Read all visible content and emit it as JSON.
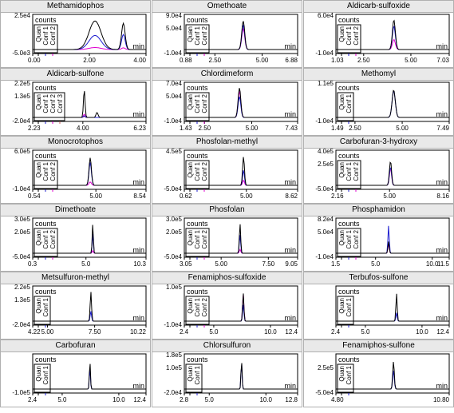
{
  "colors": {
    "quan": "#000000",
    "conf1": "#1f1fd0",
    "conf2": "#e000d0",
    "conf3": "#cc6666",
    "frame": "#000000",
    "title_bg": "#e9e9e9"
  },
  "common": {
    "counts_label": "counts",
    "min_label": "min"
  },
  "chart_data": [
    {
      "type": "line",
      "title": "Methamidophos",
      "ymax_label": "2.5e4",
      "ymid_label": "",
      "ymin_label": "-5.0e3",
      "x_ticks": [
        "0.00",
        "2.00",
        "4.00"
      ],
      "x_tick_values": [
        0,
        2,
        4
      ],
      "xlim": [
        0,
        4
      ],
      "legend": [
        "Quan",
        "Conf 1",
        "Conf 2"
      ],
      "peaks": [
        {
          "x": 2.2,
          "width": 0.3,
          "heights": [
            0.85,
            0.42,
            0.06
          ]
        },
        {
          "x": 3.2,
          "width": 0.09,
          "heights": [
            0.78,
            0.45,
            0.05
          ]
        }
      ]
    },
    {
      "type": "line",
      "title": "Omethoate",
      "ymax_label": "9.0e4",
      "ymid_label": "5.0e4",
      "ymin_label": "-1.0e4",
      "x_ticks": [
        "0.88",
        "2.50",
        "5.00",
        "6.88"
      ],
      "x_tick_values": [
        0.88,
        2.5,
        5.0,
        6.88
      ],
      "xlim": [
        0.88,
        6.88
      ],
      "legend": [
        "Quan",
        "Conf 1",
        "Conf 2"
      ],
      "peaks": [
        {
          "x": 4.0,
          "width": 0.11,
          "heights": [
            0.85,
            0.72,
            0.62
          ]
        }
      ]
    },
    {
      "type": "line",
      "title": "Aldicarb-sulfoxide",
      "ymax_label": "6.0e4",
      "ymid_label": "",
      "ymin_label": "-1.0e4",
      "x_ticks": [
        "1.03",
        "2.50",
        "5.00",
        "7.03"
      ],
      "x_tick_values": [
        1.03,
        2.5,
        5.0,
        7.03
      ],
      "xlim": [
        1.03,
        7.03
      ],
      "legend": [
        "Quan",
        "Conf 1",
        "Conf 2"
      ],
      "peaks": [
        {
          "x": 4.1,
          "width": 0.11,
          "heights": [
            0.88,
            0.7,
            0.3
          ]
        }
      ]
    },
    {
      "type": "line",
      "title": "Aldicarb-sulfone",
      "ymax_label": "2.2e5",
      "ymid_label": "1.3e5",
      "ymin_label": "-2.0e4",
      "x_ticks": [
        "2.23",
        "4.00",
        "6.23"
      ],
      "x_tick_values": [
        2.23,
        4.0,
        6.23
      ],
      "xlim": [
        2.23,
        6.23
      ],
      "legend": [
        "Quan",
        "Conf 1",
        "Conf 2",
        "Conf 3"
      ],
      "peaks": [
        {
          "x": 4.05,
          "width": 0.04,
          "heights": [
            0.82,
            0.05,
            0.1,
            0.03
          ]
        },
        {
          "x": 4.5,
          "width": 0.05,
          "heights": [
            0.15,
            0.0,
            0.0,
            0.0
          ]
        }
      ]
    },
    {
      "type": "line",
      "title": "Chlordimeform",
      "ymax_label": "7.0e4",
      "ymid_label": "5.0e4",
      "ymin_label": "-1.0e4",
      "x_ticks": [
        "1.43",
        "2.50",
        "5.00",
        "7.43"
      ],
      "x_tick_values": [
        1.43,
        2.5,
        5.0,
        7.43
      ],
      "xlim": [
        1.43,
        7.43
      ],
      "legend": [
        "Quan",
        "Conf 1",
        "Conf 2"
      ],
      "peaks": [
        {
          "x": 4.35,
          "width": 0.1,
          "heights": [
            0.88,
            0.62,
            0.78
          ]
        }
      ]
    },
    {
      "type": "line",
      "title": "Methomyl",
      "ymax_label": "1.1e5",
      "ymid_label": "",
      "ymin_label": "-1.0e4",
      "x_ticks": [
        "1.49",
        "2.50",
        "5.00",
        "7.49"
      ],
      "x_tick_values": [
        1.49,
        2.5,
        5.0,
        7.49
      ],
      "xlim": [
        1.49,
        7.49
      ],
      "legend": [
        "Quan",
        "Conf 1"
      ],
      "peaks": [
        {
          "x": 4.55,
          "width": 0.12,
          "heights": [
            0.82,
            0.8
          ]
        }
      ]
    },
    {
      "type": "line",
      "title": "Monocrotophos",
      "ymax_label": "6.0e5",
      "ymid_label": "",
      "ymin_label": "-1.0e4",
      "x_ticks": [
        "0.54",
        "5.00",
        "8.54"
      ],
      "x_tick_values": [
        0.54,
        5.0,
        8.54
      ],
      "xlim": [
        0.54,
        8.54
      ],
      "legend": [
        "Quan",
        "Conf 1",
        "Conf 2"
      ],
      "peaks": [
        {
          "x": 4.6,
          "width": 0.12,
          "heights": [
            0.82,
            0.68,
            0.1
          ]
        }
      ]
    },
    {
      "type": "line",
      "title": "Phosfolan-methyl",
      "ymax_label": "4.5e5",
      "ymid_label": "",
      "ymin_label": "-5.0e4",
      "x_ticks": [
        "0.62",
        "5.00",
        "8.62"
      ],
      "x_tick_values": [
        0.62,
        5.0,
        8.62
      ],
      "xlim": [
        0.62,
        8.62
      ],
      "legend": [
        "Quan",
        "Conf 1",
        "Conf 2"
      ],
      "peaks": [
        {
          "x": 4.8,
          "width": 0.09,
          "heights": [
            0.85,
            0.45,
            0.15
          ]
        }
      ]
    },
    {
      "type": "line",
      "title": "Carbofuran-3-hydroxy",
      "ymax_label": "4.0e5",
      "ymid_label": "2.5e5",
      "ymin_label": "-5.0e4",
      "x_ticks": [
        "2.16",
        "5.00",
        "8.16"
      ],
      "x_tick_values": [
        2.16,
        5.0,
        8.16
      ],
      "xlim": [
        2.16,
        8.16
      ],
      "legend": [
        "Quan",
        "Conf 1",
        "Conf 2"
      ],
      "peaks": [
        {
          "x": 5.05,
          "width": 0.08,
          "heights": [
            0.72,
            0.55,
            0.5
          ]
        }
      ]
    },
    {
      "type": "line",
      "title": "Dimethoate",
      "ymax_label": "3.0e5",
      "ymid_label": "2.0e5",
      "ymin_label": "-5.0e4",
      "x_ticks": [
        "0.3",
        "5.0",
        "10.3"
      ],
      "x_tick_values": [
        0.3,
        5.0,
        10.3
      ],
      "xlim": [
        0.3,
        10.3
      ],
      "legend": [
        "Quan",
        "Conf 1",
        "Conf 2"
      ],
      "peaks": [
        {
          "x": 5.6,
          "width": 0.07,
          "heights": [
            0.88,
            0.6,
            0.08
          ]
        }
      ]
    },
    {
      "type": "line",
      "title": "Phosfolan",
      "ymax_label": "3.0e5",
      "ymid_label": "2.0e5",
      "ymin_label": "-5.0e4",
      "x_ticks": [
        "3.05",
        "5.00",
        "7.50",
        "9.05"
      ],
      "x_tick_values": [
        3.05,
        5.0,
        7.5,
        9.05
      ],
      "xlim": [
        3.05,
        9.05
      ],
      "legend": [
        "Quan",
        "Conf 1",
        "Conf 2"
      ],
      "peaks": [
        {
          "x": 6.0,
          "width": 0.05,
          "heights": [
            0.88,
            0.55,
            0.12
          ]
        }
      ]
    },
    {
      "type": "line",
      "title": "Phosphamidon",
      "ymax_label": "8.2e4",
      "ymid_label": "5.0e4",
      "ymin_label": "-1.0e4",
      "x_ticks": [
        "1.5",
        "5.0",
        "10.0",
        "11.5"
      ],
      "x_tick_values": [
        1.5,
        5.0,
        10.0,
        11.5
      ],
      "xlim": [
        1.5,
        11.5
      ],
      "legend": [
        "Quan",
        "Conf 1",
        "Conf 2"
      ],
      "peaks": [
        {
          "x": 6.15,
          "width": 0.08,
          "heights": [
            0.35,
            0.82,
            0.3
          ]
        }
      ]
    },
    {
      "type": "line",
      "title": "Metsulfuron-methyl",
      "ymax_label": "2.2e5",
      "ymid_label": "1.3e5",
      "ymin_label": "-2.0e4",
      "x_ticks": [
        "4.22",
        "5.00",
        "7.50",
        "10.22"
      ],
      "x_tick_values": [
        4.22,
        5.0,
        7.5,
        10.22
      ],
      "xlim": [
        4.22,
        10.22
      ],
      "legend": [
        "Quan",
        "Conf 1"
      ],
      "peaks": [
        {
          "x": 7.3,
          "width": 0.05,
          "heights": [
            0.88,
            0.3
          ]
        }
      ]
    },
    {
      "type": "line",
      "title": "Fenamiphos-sulfoxide",
      "ymax_label": "1.0e5",
      "ymid_label": "",
      "ymin_label": "-1.0e4",
      "x_ticks": [
        "2.4",
        "5.0",
        "10.0",
        "12.4"
      ],
      "x_tick_values": [
        2.4,
        5.0,
        10.0,
        12.4
      ],
      "xlim": [
        2.4,
        12.4
      ],
      "legend": [
        "Quan",
        "Conf 1",
        "Conf 2"
      ],
      "peaks": [
        {
          "x": 7.6,
          "width": 0.08,
          "heights": [
            0.85,
            0.5,
            0.82
          ]
        }
      ]
    },
    {
      "type": "line",
      "title": "Terbufos-sulfone",
      "ymax_label": "",
      "ymid_label": "",
      "ymin_label": "",
      "x_ticks": [
        "2.4",
        "5.0",
        "10.0",
        "12.4"
      ],
      "x_tick_values": [
        2.4,
        5.0,
        10.0,
        12.4
      ],
      "xlim": [
        2.4,
        12.4
      ],
      "legend": [
        "Quan",
        "Conf 1"
      ],
      "peaks": [
        {
          "x": 7.75,
          "width": 0.08,
          "heights": [
            0.82,
            0.25
          ]
        }
      ]
    },
    {
      "type": "line",
      "title": "Carbofuran",
      "ymax_label": "",
      "ymid_label": "",
      "ymin_label": "-1.0e5",
      "x_ticks": [
        "2.4",
        "5.0",
        "10.0",
        "12.4"
      ],
      "x_tick_values": [
        2.4,
        5.0,
        10.0,
        12.4
      ],
      "xlim": [
        2.4,
        12.4
      ],
      "legend": [
        "Quan",
        "Conf 1"
      ],
      "peaks": [
        {
          "x": 7.45,
          "width": 0.07,
          "heights": [
            0.82,
            0.62
          ]
        }
      ]
    },
    {
      "type": "line",
      "title": "Chlorsulfuron",
      "ymax_label": "1.8e5",
      "ymid_label": "1.0e5",
      "ymin_label": "-2.0e4",
      "x_ticks": [
        "2.8",
        "5.0",
        "10.0",
        "12.8"
      ],
      "x_tick_values": [
        2.8,
        5.0,
        10.0,
        12.8
      ],
      "xlim": [
        2.8,
        12.8
      ],
      "legend": [
        "Quan",
        "Conf 1"
      ],
      "peaks": [
        {
          "x": 7.85,
          "width": 0.07,
          "heights": [
            0.85,
            0.8
          ]
        }
      ]
    },
    {
      "type": "line",
      "title": "Fenamiphos-sulfone",
      "ymax_label": "",
      "ymid_label": "2.5e5",
      "ymin_label": "-5.0e4",
      "x_ticks": [
        "4.80",
        "10.80"
      ],
      "x_tick_values": [
        4.8,
        10.8
      ],
      "xlim": [
        4.8,
        10.8
      ],
      "legend": [
        "Quan",
        "Conf 1"
      ],
      "peaks": [
        {
          "x": 7.85,
          "width": 0.06,
          "heights": [
            0.82,
            0.55
          ]
        }
      ]
    }
  ]
}
